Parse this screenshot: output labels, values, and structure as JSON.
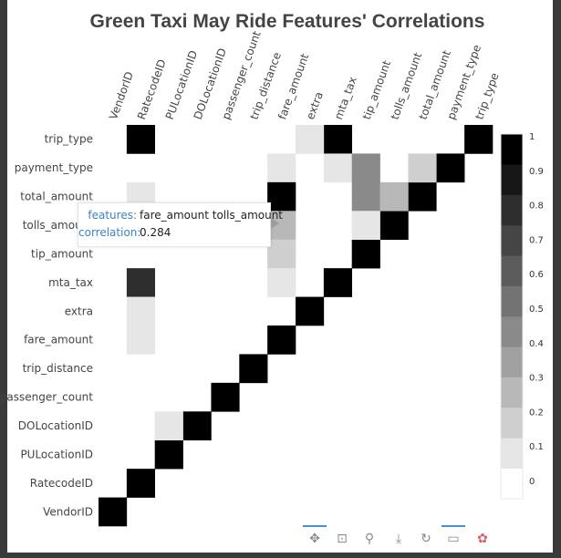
{
  "chart_data": {
    "type": "heatmap",
    "title": "Green Taxi May Ride Features' Correlations",
    "features": [
      "VendorID",
      "RatecodeID",
      "PULocationID",
      "DOLocationID",
      "passenger_count",
      "trip_distance",
      "fare_amount",
      "extra",
      "mta_tax",
      "tip_amount",
      "tolls_amount",
      "total_amount",
      "payment_type",
      "trip_type"
    ],
    "cells": [
      {
        "x": "VendorID",
        "y": "VendorID",
        "value": 1
      },
      {
        "x": "RatecodeID",
        "y": "RatecodeID",
        "value": 1
      },
      {
        "x": "PULocationID",
        "y": "PULocationID",
        "value": 1
      },
      {
        "x": "DOLocationID",
        "y": "DOLocationID",
        "value": 1
      },
      {
        "x": "passenger_count",
        "y": "passenger_count",
        "value": 1
      },
      {
        "x": "trip_distance",
        "y": "trip_distance",
        "value": 1
      },
      {
        "x": "fare_amount",
        "y": "fare_amount",
        "value": 1
      },
      {
        "x": "extra",
        "y": "extra",
        "value": 1
      },
      {
        "x": "mta_tax",
        "y": "mta_tax",
        "value": 1
      },
      {
        "x": "tip_amount",
        "y": "tip_amount",
        "value": 1
      },
      {
        "x": "tolls_amount",
        "y": "tolls_amount",
        "value": 1
      },
      {
        "x": "total_amount",
        "y": "total_amount",
        "value": 1
      },
      {
        "x": "payment_type",
        "y": "payment_type",
        "value": 1
      },
      {
        "x": "trip_type",
        "y": "trip_type",
        "value": 1
      },
      {
        "x": "RatecodeID",
        "y": "trip_type",
        "value": 0.98
      },
      {
        "x": "mta_tax",
        "y": "trip_type",
        "value": 0.92
      },
      {
        "x": "extra",
        "y": "trip_type",
        "value": 0.12
      },
      {
        "x": "fare_amount",
        "y": "payment_type",
        "value": 0.12
      },
      {
        "x": "mta_tax",
        "y": "payment_type",
        "value": 0.12
      },
      {
        "x": "tip_amount",
        "y": "payment_type",
        "value": 0.47
      },
      {
        "x": "total_amount",
        "y": "payment_type",
        "value": 0.22
      },
      {
        "x": "RatecodeID",
        "y": "total_amount",
        "value": 0.12
      },
      {
        "x": "fare_amount",
        "y": "total_amount",
        "value": 0.98
      },
      {
        "x": "tip_amount",
        "y": "total_amount",
        "value": 0.47
      },
      {
        "x": "tolls_amount",
        "y": "total_amount",
        "value": 0.33
      },
      {
        "x": "fare_amount",
        "y": "tolls_amount",
        "value": 0.284
      },
      {
        "x": "tip_amount",
        "y": "tolls_amount",
        "value": 0.12
      },
      {
        "x": "fare_amount",
        "y": "tip_amount",
        "value": 0.22
      },
      {
        "x": "RatecodeID",
        "y": "mta_tax",
        "value": 0.83
      },
      {
        "x": "fare_amount",
        "y": "mta_tax",
        "value": 0.12
      },
      {
        "x": "RatecodeID",
        "y": "extra",
        "value": 0.12
      },
      {
        "x": "RatecodeID",
        "y": "fare_amount",
        "value": 0.12
      },
      {
        "x": "PULocationID",
        "y": "DOLocationID",
        "value": 0.12
      }
    ],
    "colorbar": {
      "range": [
        0,
        1
      ],
      "ticks": [
        "0",
        "0.1",
        "0.2",
        "0.3",
        "0.4",
        "0.5",
        "0.6",
        "0.7",
        "0.8",
        "0.9",
        "1"
      ],
      "colors": [
        "#ffffff",
        "#e6e6e6",
        "#cfcfcf",
        "#b8b8b8",
        "#a1a1a1",
        "#8a8a8a",
        "#737373",
        "#5c5c5c",
        "#454545",
        "#2e2e2e",
        "#171717",
        "#000000"
      ]
    }
  },
  "tooltip": {
    "features_label": "features:",
    "features_value": "fare_amount tolls_amount",
    "correlation_label": "correlation:",
    "correlation_value": "0.284"
  },
  "toolbar": {
    "tools": [
      {
        "icon": "pan-icon",
        "glyph": "✥"
      },
      {
        "icon": "box-zoom-icon",
        "glyph": "⊡"
      },
      {
        "icon": "wheel-zoom-icon",
        "glyph": "⚲"
      },
      {
        "icon": "save-icon",
        "glyph": "⤓"
      },
      {
        "icon": "reset-icon",
        "glyph": "↻"
      },
      {
        "icon": "hover-icon",
        "glyph": "▭"
      },
      {
        "icon": "bokeh-logo-icon",
        "glyph": "✿"
      }
    ]
  }
}
